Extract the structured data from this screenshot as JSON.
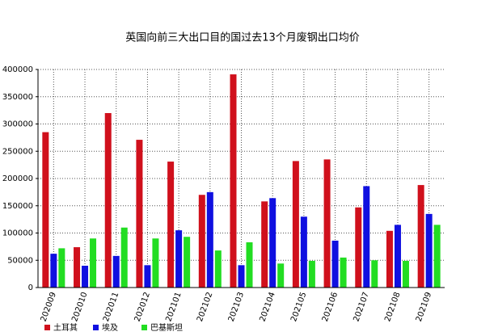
{
  "chart_data": {
    "type": "bar",
    "title": "英国向前三大出口目的国过去13个月废钢出口均价",
    "categories": [
      "202009",
      "202010",
      "202011",
      "202012",
      "202101",
      "202102",
      "202103",
      "202104",
      "202105",
      "202106",
      "202107",
      "202108",
      "202109"
    ],
    "series": [
      {
        "name": "土耳其",
        "color": "#d0101c",
        "values": [
          285000,
          74000,
          320000,
          271000,
          231000,
          170000,
          391000,
          158000,
          232000,
          235000,
          147000,
          104000,
          188000
        ]
      },
      {
        "name": "埃及",
        "color": "#1010e0",
        "values": [
          62000,
          40000,
          58000,
          41000,
          105000,
          175000,
          41000,
          164000,
          130000,
          86000,
          186000,
          115000,
          135000
        ]
      },
      {
        "name": "巴基斯坦",
        "color": "#22dd22",
        "values": [
          72000,
          90000,
          110000,
          90000,
          93000,
          68000,
          83000,
          44000,
          49000,
          55000,
          50000,
          49000,
          115000
        ]
      }
    ],
    "ylim": [
      0,
      400000
    ],
    "yticks": [
      0,
      50000,
      100000,
      150000,
      200000,
      250000,
      300000,
      350000,
      400000
    ],
    "grid": true
  }
}
